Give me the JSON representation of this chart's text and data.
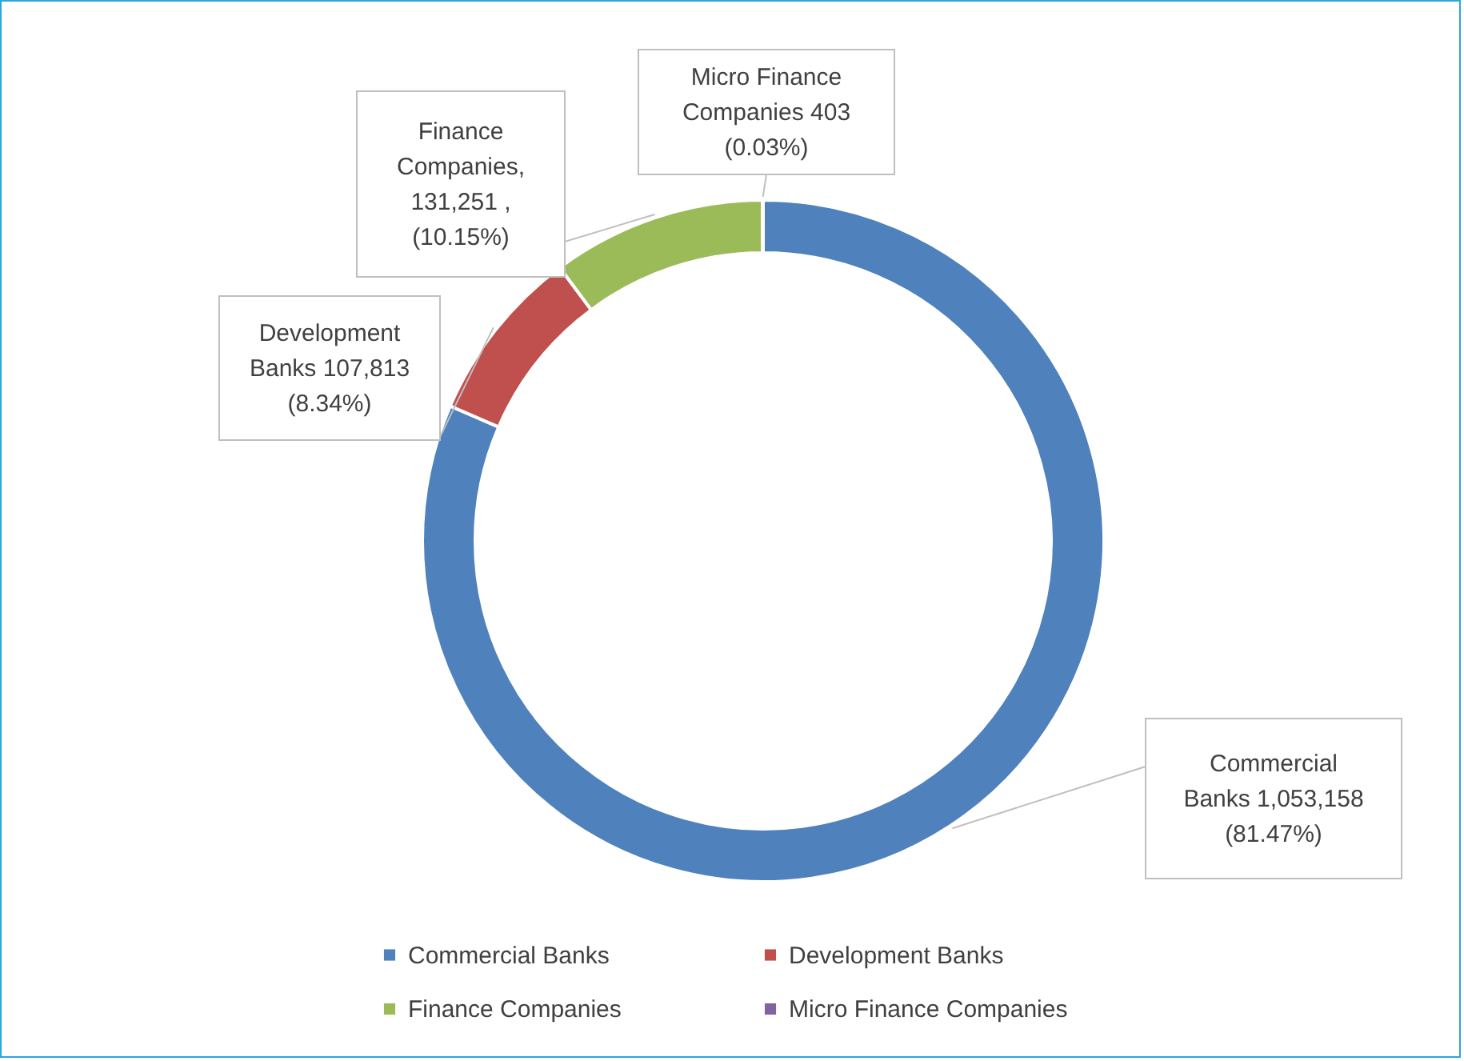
{
  "chart_data": {
    "type": "donut",
    "categories": [
      "Commercial Banks",
      "Development Banks",
      "Finance Companies",
      "Micro Finance Companies"
    ],
    "values": [
      1053158,
      107813,
      131251,
      403
    ],
    "colors": [
      "#4f81bd",
      "#c0504d",
      "#9bbb59",
      "#8064a2"
    ],
    "value_labels": [
      "Commercial Banks 1,053,158 (81.47%)",
      "Development Banks 107,813 (8.34%)",
      "Finance Companies, 131,251 , (10.15%)",
      "Micro Finance Companies 403 (0.03%)"
    ],
    "legend": "bottom"
  }
}
